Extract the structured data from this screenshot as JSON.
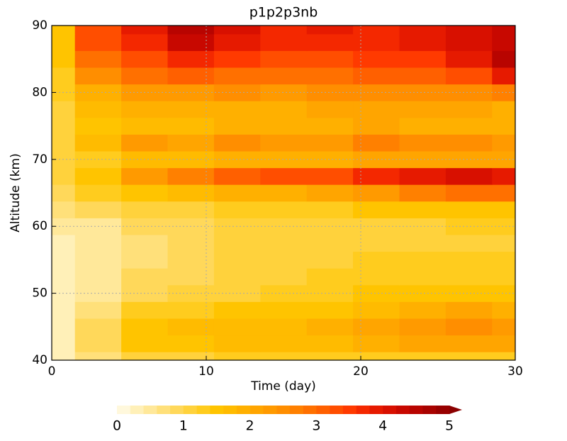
{
  "chart_data": {
    "type": "heatmap",
    "title": "p1p2p3nb",
    "xlabel": "Time (day)",
    "ylabel": "Altitude (km)",
    "x": [
      0,
      3,
      6,
      9,
      12,
      15,
      18,
      21,
      24,
      27,
      30
    ],
    "y": [
      40,
      42.5,
      45,
      47.5,
      50,
      52.5,
      55,
      57.5,
      60,
      62.5,
      65,
      67.5,
      70,
      72.5,
      75,
      77.5,
      80,
      82.5,
      85,
      87.5,
      90
    ],
    "z": [
      [
        0.2,
        0.6,
        1.0,
        1.1,
        1.2,
        1.2,
        1.2,
        1.3,
        1.3,
        1.3,
        1.3
      ],
      [
        0.3,
        0.9,
        1.4,
        1.5,
        1.6,
        1.6,
        1.7,
        1.9,
        2.0,
        2.0,
        2.0
      ],
      [
        0.3,
        0.8,
        1.5,
        1.6,
        1.7,
        1.7,
        1.8,
        2.1,
        2.3,
        2.4,
        2.3
      ],
      [
        0.3,
        0.7,
        1.2,
        1.3,
        1.4,
        1.4,
        1.5,
        1.7,
        1.9,
        2.0,
        1.9
      ],
      [
        0.3,
        0.5,
        0.9,
        1.0,
        1.1,
        1.2,
        1.3,
        1.4,
        1.5,
        1.5,
        1.5
      ],
      [
        0.3,
        0.4,
        0.8,
        0.9,
        1.0,
        1.1,
        1.2,
        1.3,
        1.3,
        1.3,
        1.3
      ],
      [
        0.3,
        0.4,
        0.7,
        0.8,
        1.0,
        1.0,
        1.1,
        1.2,
        1.2,
        1.2,
        1.2
      ],
      [
        0.3,
        0.4,
        0.7,
        0.8,
        1.0,
        1.0,
        1.1,
        1.1,
        1.1,
        1.1,
        1.1
      ],
      [
        0.4,
        0.5,
        0.8,
        0.8,
        1.0,
        1.0,
        1.1,
        1.1,
        1.1,
        1.2,
        1.2
      ],
      [
        0.6,
        0.8,
        1.0,
        1.1,
        1.2,
        1.3,
        1.3,
        1.4,
        1.4,
        1.5,
        1.5
      ],
      [
        0.9,
        1.2,
        1.5,
        1.6,
        1.8,
        1.9,
        2.0,
        2.3,
        2.6,
        2.9,
        2.8
      ],
      [
        1.0,
        1.5,
        2.2,
        2.6,
        3.0,
        3.2,
        3.3,
        3.6,
        3.8,
        4.0,
        3.8
      ],
      [
        1.0,
        1.3,
        1.6,
        1.7,
        1.8,
        1.9,
        1.9,
        2.0,
        2.0,
        2.1,
        2.0
      ],
      [
        1.1,
        1.7,
        2.2,
        2.1,
        2.4,
        2.3,
        2.3,
        2.7,
        2.5,
        2.4,
        2.3
      ],
      [
        1.1,
        1.5,
        1.7,
        1.7,
        1.8,
        1.8,
        1.9,
        2.0,
        1.9,
        1.9,
        1.8
      ],
      [
        1.1,
        1.6,
        1.8,
        1.8,
        1.9,
        1.9,
        2.0,
        2.1,
        2.0,
        2.0,
        1.9
      ],
      [
        1.2,
        1.9,
        2.2,
        2.3,
        2.4,
        2.3,
        2.4,
        2.5,
        2.4,
        2.5,
        2.6
      ],
      [
        1.3,
        2.5,
        2.8,
        3.0,
        2.9,
        2.8,
        2.9,
        3.0,
        3.0,
        3.3,
        3.8
      ],
      [
        1.4,
        2.9,
        3.2,
        3.6,
        3.4,
        3.2,
        3.3,
        3.4,
        3.5,
        3.8,
        4.5
      ],
      [
        1.5,
        3.2,
        3.6,
        4.2,
        3.9,
        3.6,
        3.7,
        3.6,
        3.8,
        4.0,
        4.3
      ],
      [
        1.5,
        3.3,
        3.8,
        4.4,
        4.0,
        3.7,
        3.8,
        3.6,
        3.9,
        4.0,
        4.2
      ]
    ],
    "xlim": [
      0,
      30
    ],
    "ylim": [
      40,
      90
    ],
    "xticks": [
      0,
      10,
      20,
      30
    ],
    "yticks": [
      40,
      50,
      60,
      70,
      80,
      90
    ],
    "grid": true,
    "levels": [
      0,
      0.2,
      0.4,
      0.6,
      0.8,
      1,
      1.2,
      1.4,
      1.6,
      1.8,
      2,
      2.2,
      2.4,
      2.6,
      2.8,
      3,
      3.2,
      3.4,
      3.6,
      3.8,
      4,
      4.2,
      4.4,
      4.6,
      4.8,
      5
    ],
    "colors": [
      "#fff8dc",
      "#fff0b8",
      "#ffe89a",
      "#ffe07a",
      "#ffd85a",
      "#ffd23c",
      "#ffcc1e",
      "#ffc400",
      "#ffbb00",
      "#ffb000",
      "#ffa500",
      "#ff9a00",
      "#ff8e00",
      "#ff8000",
      "#ff7000",
      "#ff6000",
      "#ff4e00",
      "#ff3a00",
      "#f42800",
      "#e61a00",
      "#d81000",
      "#c80800",
      "#b80400",
      "#a80200",
      "#980000",
      "#8b0000"
    ],
    "colorbar_ticks": [
      0,
      1,
      2,
      3,
      4,
      5
    ]
  }
}
